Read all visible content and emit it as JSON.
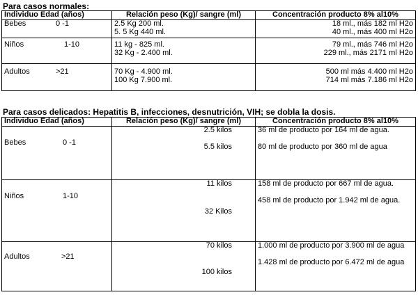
{
  "normal": {
    "title": "Para casos  normales:",
    "headers": {
      "col1": "Individuo Edad (años)",
      "col2": "Relación peso (Kg)/ sangre (ml)",
      "col3": "Concentración producto 8% al10%"
    },
    "rows": [
      {
        "individuo": "Bebes",
        "edad": "0 -1",
        "relacion": [
          "2.5 Kg      200  ml.",
          "5. 5 Kg    440  ml."
        ],
        "concentracion": [
          "18  ml., más 182  ml  H2o",
          "40  ml., más 400  ml  H2o"
        ]
      },
      {
        "individuo": "Niños",
        "edad": "1-10",
        "relacion": [
          "11  kg     -   825  ml.",
          "32  Kg      - 2.400  ml."
        ],
        "concentracion": [
          "79  ml.,  más   746  ml H2o",
          "229  ml., más 2171  ml H2o"
        ]
      },
      {
        "individuo": "Adultos",
        "edad": ">21",
        "relacion": [
          "70  Kg     - 4.900  ml.",
          "100  Kg     7.900  ml."
        ],
        "concentracion": [
          "500  ml  más  4.400  ml H2o",
          "714  ml  más  7.186  ml H2o"
        ]
      }
    ]
  },
  "delicate": {
    "title": "Para casos delicados: Hepatitis B, infecciones, desnutrición, VIH; se dobla la dosis.",
    "headers": {
      "col1": "Individuo Edad (años)",
      "col2": "Relación peso (Kg)/ sangre (ml)",
      "col3": "Concentración producto 8% al10%"
    },
    "rows": [
      {
        "individuo": "Bebes",
        "edad": "0 -1",
        "peso": [
          "2.5 kilos",
          "5.5 kilos"
        ],
        "concentracion": [
          "36  ml  de  producto  por  164  ml  de agua.",
          "80  ml  de  producto  por  360  ml  de agua"
        ]
      },
      {
        "individuo": "Niños",
        "edad": "1-10",
        "peso": [
          "11 kilos",
          "32 Kilos"
        ],
        "concentracion": [
          "158  ml  de  producto  por  667  ml  de agua.",
          "458  ml  de  producto  por  1.942  ml  de agua."
        ]
      },
      {
        "individuo": "Adultos",
        "edad": ">21",
        "peso": [
          "70 kilos",
          "100 kilos"
        ],
        "concentracion": [
          "1.000  ml de producto por 3.900  ml de agua",
          "1.428  ml de producto por 6.472  ml de agua"
        ]
      }
    ]
  }
}
